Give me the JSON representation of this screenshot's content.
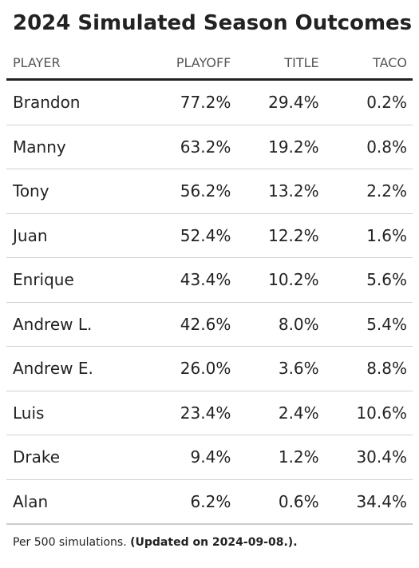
{
  "title": "2024 Simulated Season Outcomes",
  "columns": [
    "PLAYER",
    "PLAYOFF",
    "TITLE",
    "TACO"
  ],
  "rows": [
    {
      "player": "Brandon",
      "playoff": "77.2%",
      "title": "29.4%",
      "taco": "0.2%"
    },
    {
      "player": "Manny",
      "playoff": "63.2%",
      "title": "19.2%",
      "taco": "0.8%"
    },
    {
      "player": "Tony",
      "playoff": "56.2%",
      "title": "13.2%",
      "taco": "2.2%"
    },
    {
      "player": "Juan",
      "playoff": "52.4%",
      "title": "12.2%",
      "taco": "1.6%"
    },
    {
      "player": "Enrique",
      "playoff": "43.4%",
      "title": "10.2%",
      "taco": "5.6%"
    },
    {
      "player": "Andrew L.",
      "playoff": "42.6%",
      "title": "8.0%",
      "taco": "5.4%"
    },
    {
      "player": "Andrew E.",
      "playoff": "26.0%",
      "title": "3.6%",
      "taco": "8.8%"
    },
    {
      "player": "Luis",
      "playoff": "23.4%",
      "title": "2.4%",
      "taco": "10.6%"
    },
    {
      "player": "Drake",
      "playoff": "9.4%",
      "title": "1.2%",
      "taco": "30.4%"
    },
    {
      "player": "Alan",
      "playoff": "6.2%",
      "title": "0.6%",
      "taco": "34.4%"
    }
  ],
  "footer": {
    "note": "Per 500 simulations.",
    "updated": "(Updated on 2024-09-08.)."
  },
  "colors": {
    "text": "#222222",
    "header_text": "#555555",
    "rule": "#222222",
    "row_divider": "#d0d0d0"
  }
}
